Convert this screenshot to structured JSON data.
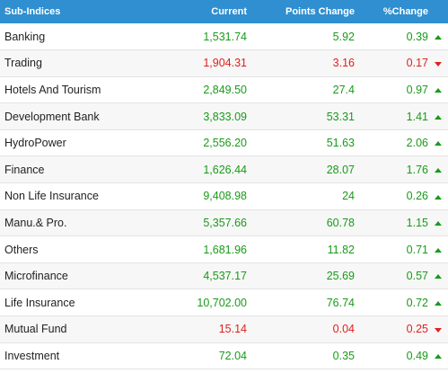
{
  "header": {
    "name": "Sub-Indices",
    "current": "Current",
    "points_change": "Points Change",
    "percent_change": "%Change"
  },
  "colors": {
    "up": "#1a9a1a",
    "down": "#e0201c",
    "header_bg": "#2f8fd0"
  },
  "rows": [
    {
      "name": "Banking",
      "current": "1,531.74",
      "points": "5.92",
      "percent": "0.39",
      "direction": "up"
    },
    {
      "name": "Trading",
      "current": "1,904.31",
      "points": "3.16",
      "percent": "0.17",
      "direction": "down"
    },
    {
      "name": "Hotels And Tourism",
      "current": "2,849.50",
      "points": "27.4",
      "percent": "0.97",
      "direction": "up"
    },
    {
      "name": "Development Bank",
      "current": "3,833.09",
      "points": "53.31",
      "percent": "1.41",
      "direction": "up"
    },
    {
      "name": "HydroPower",
      "current": "2,556.20",
      "points": "51.63",
      "percent": "2.06",
      "direction": "up"
    },
    {
      "name": "Finance",
      "current": "1,626.44",
      "points": "28.07",
      "percent": "1.76",
      "direction": "up"
    },
    {
      "name": "Non Life Insurance",
      "current": "9,408.98",
      "points": "24",
      "percent": "0.26",
      "direction": "up"
    },
    {
      "name": "Manu.& Pro.",
      "current": "5,357.66",
      "points": "60.78",
      "percent": "1.15",
      "direction": "up"
    },
    {
      "name": "Others",
      "current": "1,681.96",
      "points": "11.82",
      "percent": "0.71",
      "direction": "up"
    },
    {
      "name": "Microfinance",
      "current": "4,537.17",
      "points": "25.69",
      "percent": "0.57",
      "direction": "up"
    },
    {
      "name": "Life Insurance",
      "current": "10,702.00",
      "points": "76.74",
      "percent": "0.72",
      "direction": "up"
    },
    {
      "name": "Mutual Fund",
      "current": "15.14",
      "points": "0.04",
      "percent": "0.25",
      "direction": "down"
    },
    {
      "name": "Investment",
      "current": "72.04",
      "points": "0.35",
      "percent": "0.49",
      "direction": "up"
    }
  ]
}
